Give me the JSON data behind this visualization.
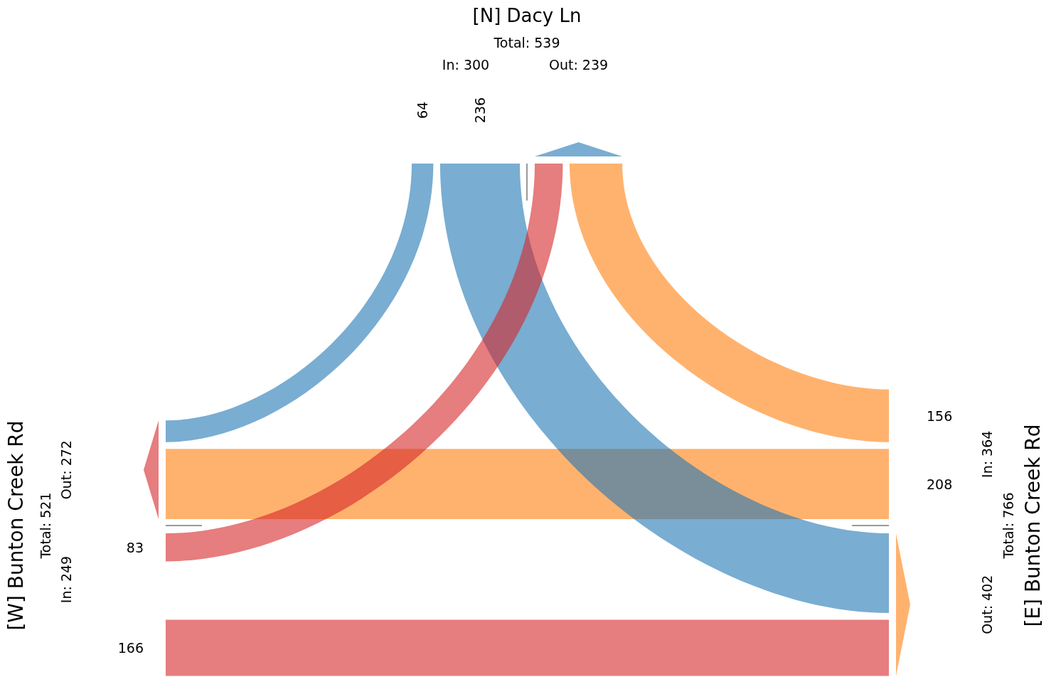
{
  "chart_data": {
    "type": "other",
    "categories": [
      "[N] Dacy Ln",
      "[W] Bunton Creek Rd",
      "[E] Bunton Creek Rd"
    ],
    "series": [
      {
        "colors": [
          null,
          "#d62728",
          "#ff7f0e"
        ],
        "values": [
          null,
          83,
          156
        ]
      },
      {
        "colors": [
          "#1f77b4",
          null,
          "#ff7f0e"
        ],
        "values": [
          64,
          null,
          208
        ]
      },
      {
        "colors": [
          "#1f77b4",
          "#d62728",
          null
        ],
        "values": [
          236,
          166,
          null
        ]
      }
    ],
    "data_labels": true,
    "annotations": [
      "Total: 539",
      "In: 300",
      "Out: 239",
      "Total: 521",
      "In: 249",
      "Out: 272",
      "Total: 766",
      "In: 364",
      "Out: 402"
    ]
  }
}
